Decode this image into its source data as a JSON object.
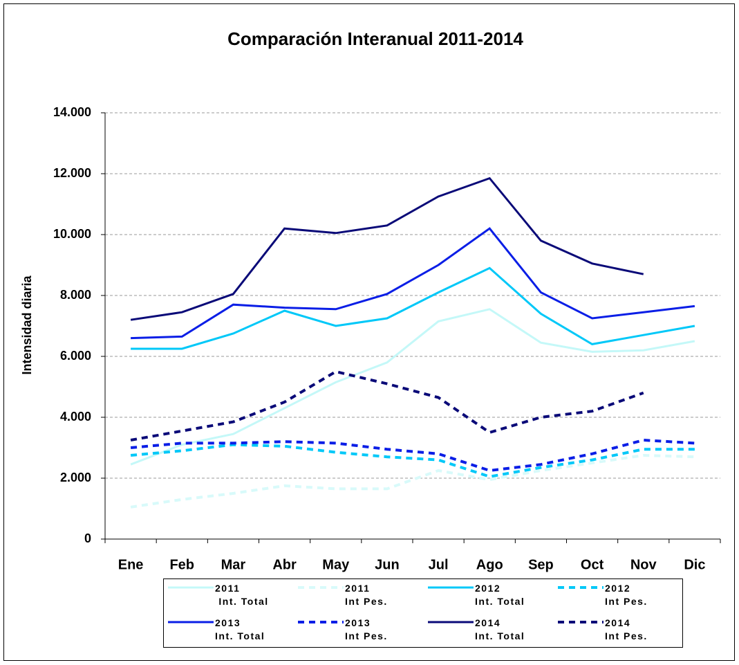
{
  "chart_data": {
    "type": "line",
    "title": "Comparación Interanual 2011-2014",
    "y_label": "Intensidad diaria",
    "categories": [
      "Ene",
      "Feb",
      "Mar",
      "Abr",
      "May",
      "Jun",
      "Jul",
      "Ago",
      "Sep",
      "Oct",
      "Nov",
      "Dic"
    ],
    "ylim": [
      0,
      14000
    ],
    "yticks": [
      0,
      {
        "value": 2000,
        "label": "2.000"
      },
      {
        "value": 4000,
        "label": "4.000"
      },
      {
        "value": 6000,
        "label": "6.000"
      },
      {
        "value": 8000,
        "label": "8.000"
      },
      {
        "value": 10000,
        "label": "10.000"
      },
      {
        "value": 12000,
        "label": "12.000"
      },
      {
        "value": 14000,
        "label": "14.000"
      }
    ],
    "grid": true,
    "series": [
      {
        "name": "2011\n Int. Total",
        "color": "#c4f8f8",
        "style": "solid",
        "values": [
          2450,
          3100,
          3450,
          4300,
          5150,
          5800,
          7150,
          7550,
          6450,
          6150,
          6200,
          6500
        ]
      },
      {
        "name": "2011\nInt Pes.",
        "color": "#d8fafa",
        "style": "dashed",
        "values": [
          1050,
          1300,
          1500,
          1750,
          1650,
          1650,
          2250,
          1950,
          2250,
          2500,
          2750,
          2700
        ]
      },
      {
        "name": "2012\nInt. Total",
        "color": "#00c8f8",
        "style": "solid",
        "values": [
          6250,
          6250,
          6750,
          7500,
          7000,
          7250,
          8100,
          8900,
          7400,
          6400,
          6700,
          7000
        ]
      },
      {
        "name": "2012\nInt Pes.",
        "color": "#00c8f8",
        "style": "dashed",
        "values": [
          2750,
          2900,
          3100,
          3050,
          2850,
          2700,
          2600,
          2050,
          2350,
          2600,
          2950,
          2950
        ]
      },
      {
        "name": "2013\nInt. Total",
        "color": "#0a1ee6",
        "style": "solid",
        "values": [
          6600,
          6650,
          7700,
          7600,
          7550,
          8050,
          9000,
          10200,
          8100,
          7250,
          7450,
          7650
        ]
      },
      {
        "name": "2013\nInt Pes.",
        "color": "#0a1ee6",
        "style": "dashed",
        "values": [
          3000,
          3150,
          3150,
          3200,
          3150,
          2950,
          2800,
          2250,
          2450,
          2800,
          3250,
          3150
        ]
      },
      {
        "name": "2014\nInt. Total",
        "color": "#0a0a78",
        "style": "solid",
        "values": [
          7200,
          7450,
          8050,
          10200,
          10050,
          10300,
          11250,
          11850,
          9800,
          9050,
          8700,
          null
        ]
      },
      {
        "name": "2014\nInt Pes.",
        "color": "#0a0a78",
        "style": "dashed",
        "values": [
          3250,
          3550,
          3850,
          4500,
          5500,
          5100,
          4650,
          3500,
          4000,
          4200,
          4800,
          null
        ]
      }
    ]
  }
}
